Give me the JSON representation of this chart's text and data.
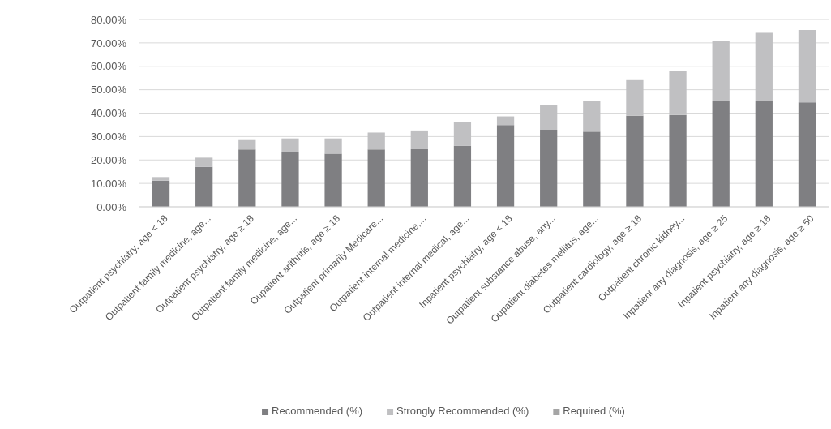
{
  "chart_data": {
    "type": "bar",
    "stacked": true,
    "grid": "y",
    "legend": "bottom",
    "categories": [
      "Outpatient psychiatry, age < 18",
      "Outpatient family medicine, age...",
      "Outpatient psychiatry, age ≥ 18",
      "Outpatient family medicine, age...",
      "Oupatient arithritis, age ≥ 18",
      "Outpatient primarily Medicare...",
      "Outpatient internal medicine,...",
      "Outpatient internal medical, age...",
      "Inpatient psychiatry, age < 18",
      "Outpatient substance abuse, any...",
      "Oupatient diabetes mellitus, age...",
      "Outpatient cardiology, age ≥ 18",
      "Outpatient chronic kidney...",
      "Inpatient any diagnosis, age ≥ 25",
      "Inpatient psychiatry, age ≥ 18",
      "Inpatient any diagnosis, age ≥ 50"
    ],
    "series": [
      {
        "name": "Recommended (%)",
        "color": "#7f7f82",
        "values": [
          11.2,
          17.1,
          24.5,
          23.3,
          22.7,
          24.5,
          24.6,
          26.0,
          34.9,
          32.9,
          32.1,
          38.9,
          39.2,
          45.2,
          45.2,
          44.6
        ]
      },
      {
        "name": "Strongly Recommended (%)",
        "color": "#c0c0c2",
        "values": [
          1.5,
          3.9,
          4.0,
          5.9,
          6.5,
          7.2,
          8.0,
          10.3,
          3.7,
          10.6,
          13.1,
          15.2,
          18.9,
          25.7,
          29.1,
          30.9
        ]
      },
      {
        "name": "Required (%)",
        "color": "#a5a5a5",
        "values": [
          0,
          0,
          0,
          0,
          0,
          0,
          0,
          0,
          0,
          0,
          0,
          0,
          0,
          0,
          0,
          0
        ]
      }
    ],
    "ylim": [
      0,
      80
    ],
    "yticks": [
      {
        "value": 0,
        "label": "0.00%"
      },
      {
        "value": 10,
        "label": "10.00%"
      },
      {
        "value": 20,
        "label": "20.00%"
      },
      {
        "value": 30,
        "label": "30.00%"
      },
      {
        "value": 40,
        "label": "40.00%"
      },
      {
        "value": 50,
        "label": "50.00%"
      },
      {
        "value": 60,
        "label": "60.00%"
      },
      {
        "value": 70,
        "label": "70.00%"
      },
      {
        "value": 80,
        "label": "80.00%"
      }
    ]
  }
}
